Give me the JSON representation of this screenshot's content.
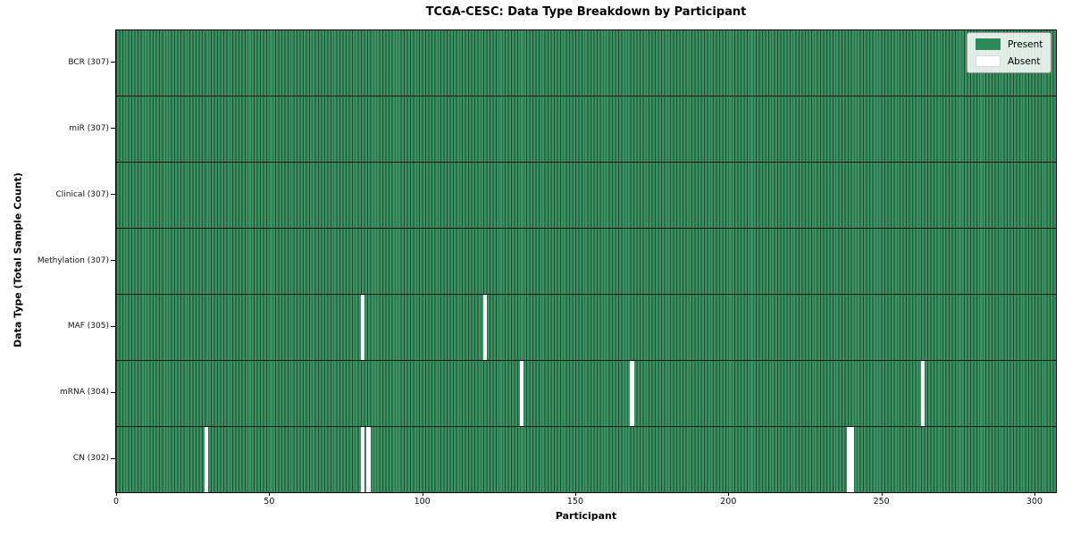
{
  "chart_data": {
    "type": "heatmap",
    "title": "TCGA-CESC: Data Type Breakdown by Participant",
    "xlabel": "Participant",
    "ylabel": "Data Type (Total Sample Count)",
    "x_ticks": [
      0,
      50,
      100,
      150,
      200,
      250,
      300
    ],
    "x_range": [
      0,
      307
    ],
    "n_participants": 307,
    "grid": false,
    "legend": {
      "position": "top-right",
      "items": [
        {
          "label": "Present",
          "color": "#2e8b57"
        },
        {
          "label": "Absent",
          "color": "#ffffff"
        }
      ]
    },
    "rows": [
      {
        "label": "BCR (307)",
        "data_type": "BCR",
        "total_sample_count": 307,
        "absent_participants": []
      },
      {
        "label": "miR (307)",
        "data_type": "miR",
        "total_sample_count": 307,
        "absent_participants": []
      },
      {
        "label": "Clinical (307)",
        "data_type": "Clinical",
        "total_sample_count": 307,
        "absent_participants": []
      },
      {
        "label": "Methylation (307)",
        "data_type": "Methylation",
        "total_sample_count": 307,
        "absent_participants": []
      },
      {
        "label": "MAF (305)",
        "data_type": "MAF",
        "total_sample_count": 305,
        "absent_participants": [
          80,
          120
        ]
      },
      {
        "label": "mRNA (304)",
        "data_type": "mRNA",
        "total_sample_count": 304,
        "absent_participants": [
          132,
          168,
          263
        ]
      },
      {
        "label": "CN (302)",
        "data_type": "CN",
        "total_sample_count": 302,
        "absent_participants": [
          29,
          80,
          82,
          239,
          240
        ]
      }
    ],
    "colors": {
      "present_fill": "#3b9364",
      "cell_edge": "#1b4a2f",
      "absent": "#ffffff",
      "row_separator": "#101010",
      "spine": "#000000",
      "legend_present_swatch": "#2e8b57"
    }
  }
}
